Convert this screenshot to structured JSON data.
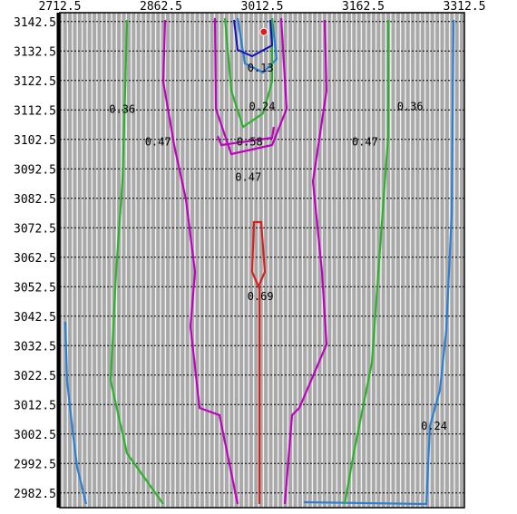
{
  "chart_data": {
    "type": "contour",
    "x_ticks": [
      "2712.5",
      "2862.5",
      "3012.5",
      "3162.5",
      "3312.5"
    ],
    "y_ticks": [
      "3142.5",
      "3132.5",
      "3122.5",
      "3112.5",
      "3102.5",
      "3092.5",
      "3082.5",
      "3072.5",
      "3062.5",
      "3052.5",
      "3042.5",
      "3032.5",
      "3022.5",
      "3012.5",
      "3002.5",
      "2992.5",
      "2982.5"
    ],
    "xlim": [
      2712.5,
      3312.5
    ],
    "ylim": [
      2977.5,
      3145.5
    ],
    "grid": true,
    "background_color": "#a9a9a9",
    "levels": [
      {
        "level": "0.24",
        "color": "#2a7fd6",
        "label_points": [
          [
            3012.5,
            3112.5
          ],
          [
            3267.5,
            3004.0
          ]
        ]
      },
      {
        "level": "0.36",
        "color": "#2ab32a",
        "label_points": [
          [
            2805.0,
            3111.5
          ],
          [
            3232.0,
            3112.5
          ]
        ]
      },
      {
        "level": "0.47",
        "color": "#c000c0",
        "label_points": [
          [
            2858.0,
            3100.5
          ],
          [
            3165.0,
            3100.5
          ],
          [
            2992.0,
            3088.5
          ]
        ]
      },
      {
        "level": "0.58",
        "color": "#c000c0",
        "label_points": [
          [
            2994.0,
            3100.5
          ]
        ]
      },
      {
        "level": "0.69",
        "color": "#d81f1f",
        "label_points": [
          [
            3010.0,
            3048.0
          ]
        ]
      },
      {
        "level": "0.13",
        "color": "#1010c0",
        "label_points": [
          [
            3010.0,
            3125.5
          ]
        ]
      }
    ],
    "peak_marker": {
      "x": 3015.0,
      "y": 3139.0,
      "color": "#d81f1f"
    }
  }
}
